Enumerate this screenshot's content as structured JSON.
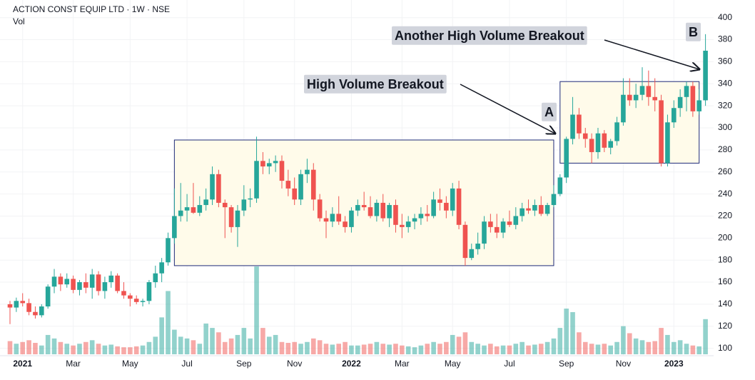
{
  "chart_data": {
    "type": "candlestick",
    "title": "ACTION CONST EQUIP LTD · 1W · NSE",
    "volume_label": "Vol",
    "categories": [
      null,
      null,
      "2021",
      null,
      null,
      null,
      null,
      null,
      null,
      null,
      "Mar",
      null,
      null,
      null,
      null,
      null,
      null,
      null,
      null,
      "May",
      null,
      null,
      null,
      null,
      null,
      null,
      null,
      null,
      "Jul",
      null,
      null,
      null,
      null,
      null,
      null,
      null,
      null,
      "Sep",
      null,
      null,
      null,
      null,
      null,
      null,
      null,
      "Nov",
      null,
      null,
      null,
      null,
      null,
      null,
      null,
      null,
      "2022",
      null,
      null,
      null,
      null,
      null,
      null,
      null,
      "Mar",
      null,
      null,
      null,
      null,
      null,
      null,
      null,
      "May",
      null,
      null,
      null,
      null,
      null,
      null,
      null,
      null,
      "Jul",
      null,
      null,
      null,
      null,
      null,
      null,
      null,
      null,
      "Sep",
      null,
      null,
      null,
      null,
      null,
      null,
      null,
      null,
      "Nov",
      null,
      null,
      null,
      null,
      null,
      null,
      null,
      "2023",
      null,
      null,
      null,
      null,
      null
    ],
    "open": [
      140,
      137,
      143,
      141,
      133,
      130,
      138,
      156,
      165,
      158,
      163,
      153,
      160,
      155,
      167,
      152,
      160,
      166,
      152,
      148,
      145,
      142,
      143,
      160,
      168,
      178,
      200,
      220,
      225,
      228,
      223,
      230,
      235,
      258,
      232,
      228,
      210,
      225,
      235,
      236,
      270,
      265,
      268,
      270,
      252,
      245,
      235,
      258,
      262,
      235,
      218,
      215,
      222,
      215,
      210,
      225,
      230,
      228,
      220,
      232,
      218,
      230,
      212,
      210,
      215,
      218,
      222,
      220,
      235,
      232,
      225,
      245,
      212,
      182,
      190,
      195,
      215,
      210,
      205,
      215,
      212,
      220,
      227,
      225,
      230,
      222,
      230,
      240,
      255,
      290,
      312,
      295,
      290,
      278,
      295,
      282,
      288,
      305,
      330,
      325,
      330,
      338,
      328,
      325,
      268,
      305,
      318,
      328,
      338,
      315,
      325
    ],
    "high": [
      143,
      146,
      150,
      145,
      138,
      140,
      158,
      172,
      168,
      168,
      166,
      162,
      168,
      172,
      170,
      165,
      170,
      168,
      160,
      150,
      148,
      145,
      162,
      175,
      182,
      205,
      245,
      250,
      240,
      250,
      238,
      245,
      265,
      262,
      235,
      230,
      230,
      248,
      245,
      292,
      278,
      272,
      275,
      275,
      262,
      255,
      262,
      272,
      268,
      240,
      225,
      228,
      238,
      220,
      228,
      235,
      242,
      238,
      235,
      240,
      232,
      235,
      222,
      220,
      222,
      228,
      230,
      242,
      245,
      238,
      250,
      252,
      215,
      195,
      205,
      220,
      222,
      222,
      218,
      225,
      228,
      232,
      235,
      235,
      238,
      232,
      248,
      258,
      292,
      328,
      318,
      300,
      295,
      300,
      298,
      290,
      310,
      345,
      345,
      340,
      355,
      352,
      345,
      330,
      312,
      325,
      335,
      342,
      342,
      335,
      385
    ],
    "low": [
      122,
      133,
      138,
      130,
      127,
      128,
      136,
      150,
      152,
      155,
      150,
      148,
      150,
      145,
      148,
      145,
      155,
      150,
      145,
      138,
      140,
      138,
      140,
      155,
      160,
      175,
      195,
      215,
      215,
      222,
      220,
      225,
      230,
      228,
      200,
      205,
      192,
      220,
      228,
      232,
      258,
      258,
      260,
      245,
      238,
      230,
      230,
      250,
      225,
      215,
      200,
      210,
      212,
      205,
      205,
      220,
      225,
      218,
      215,
      215,
      210,
      205,
      200,
      205,
      208,
      212,
      215,
      218,
      225,
      218,
      220,
      208,
      175,
      180,
      185,
      190,
      205,
      200,
      200,
      210,
      208,
      215,
      222,
      220,
      220,
      220,
      228,
      238,
      250,
      285,
      290,
      282,
      268,
      272,
      278,
      276,
      284,
      302,
      320,
      318,
      325,
      320,
      315,
      265,
      265,
      300,
      310,
      315,
      310,
      312,
      320
    ],
    "close": [
      137,
      143,
      141,
      133,
      130,
      138,
      156,
      165,
      158,
      163,
      153,
      160,
      155,
      167,
      152,
      160,
      166,
      152,
      148,
      145,
      142,
      143,
      160,
      168,
      178,
      200,
      220,
      225,
      228,
      223,
      230,
      235,
      258,
      232,
      228,
      210,
      225,
      235,
      236,
      270,
      265,
      268,
      270,
      252,
      245,
      235,
      258,
      262,
      235,
      218,
      215,
      222,
      215,
      210,
      225,
      230,
      228,
      220,
      232,
      218,
      230,
      212,
      210,
      215,
      218,
      222,
      220,
      235,
      232,
      225,
      245,
      212,
      182,
      190,
      195,
      215,
      210,
      205,
      215,
      212,
      220,
      227,
      225,
      230,
      222,
      230,
      240,
      255,
      290,
      312,
      295,
      290,
      278,
      295,
      282,
      288,
      305,
      330,
      325,
      330,
      338,
      328,
      325,
      268,
      305,
      318,
      328,
      338,
      315,
      325,
      370
    ],
    "volume": [
      15,
      12,
      14,
      16,
      13,
      10,
      22,
      18,
      14,
      12,
      10,
      12,
      14,
      16,
      12,
      10,
      11,
      9,
      8,
      8,
      9,
      10,
      14,
      20,
      42,
      72,
      28,
      20,
      18,
      16,
      12,
      35,
      30,
      25,
      14,
      18,
      22,
      30,
      18,
      100,
      30,
      20,
      22,
      14,
      13,
      14,
      12,
      14,
      18,
      16,
      12,
      11,
      12,
      14,
      10,
      10,
      11,
      12,
      14,
      12,
      11,
      12,
      10,
      9,
      8,
      10,
      12,
      14,
      12,
      14,
      22,
      20,
      25,
      14,
      12,
      10,
      12,
      9,
      10,
      10,
      12,
      14,
      10,
      11,
      12,
      14,
      18,
      30,
      52,
      48,
      25,
      14,
      12,
      11,
      12,
      10,
      14,
      32,
      24,
      18,
      16,
      14,
      15,
      30,
      22,
      14,
      16,
      12,
      10,
      9,
      40
    ],
    "up_color": "#26a69a",
    "down_color": "#ef5350",
    "ylim": [
      92,
      416
    ],
    "yticks": [
      100,
      120,
      140,
      160,
      180,
      200,
      220,
      240,
      260,
      280,
      300,
      320,
      340,
      360,
      380,
      400
    ],
    "ranges": [
      {
        "from": 26,
        "to": 86,
        "low": 175,
        "high": 289
      },
      {
        "from": 87,
        "to": 109,
        "low": 268,
        "high": 342
      }
    ],
    "annotations": [
      "High Volume Breakout",
      "Another High Volume Breakout",
      "A",
      "B"
    ]
  }
}
